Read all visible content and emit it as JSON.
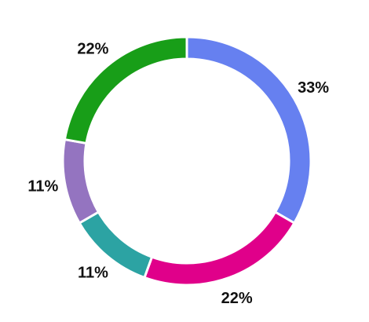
{
  "chart_data": {
    "type": "pie",
    "donut": true,
    "title": "",
    "slices": [
      {
        "label": "33%",
        "value": 33,
        "color": "#6680f0"
      },
      {
        "label": "22%",
        "value": 22,
        "color": "#e0008a"
      },
      {
        "label": "11%",
        "value": 11,
        "color": "#2ca3a3"
      },
      {
        "label": "11%",
        "value": 11,
        "color": "#9474c0"
      },
      {
        "label": "22%",
        "value": 22,
        "color": "#189e18"
      }
    ],
    "legend": "none",
    "start_angle_deg": 0,
    "direction": "clockwise"
  }
}
